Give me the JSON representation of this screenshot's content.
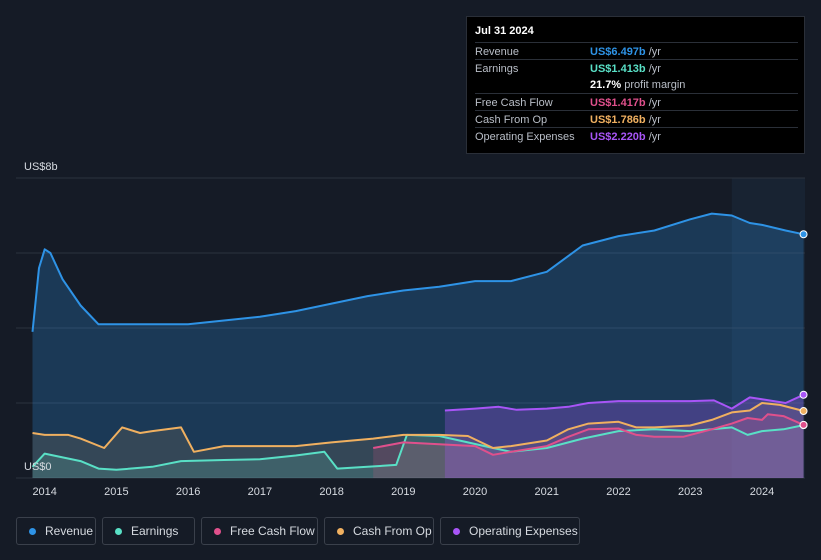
{
  "tooltip": {
    "date": "Jul 31 2024",
    "rows": [
      {
        "label": "Revenue",
        "value": "US$6.497b",
        "unit": "/yr",
        "color": "#2e93e6"
      },
      {
        "label": "Earnings",
        "value": "US$1.413b",
        "unit": "/yr",
        "color": "#59e0c6"
      },
      {
        "label": "",
        "value": "21.7%",
        "unit": "profit margin",
        "color": "#ffffff"
      },
      {
        "label": "Free Cash Flow",
        "value": "US$1.417b",
        "unit": "/yr",
        "color": "#e0508c"
      },
      {
        "label": "Cash From Op",
        "value": "US$1.786b",
        "unit": "/yr",
        "color": "#f0b060"
      },
      {
        "label": "Operating Expenses",
        "value": "US$2.220b",
        "unit": "/yr",
        "color": "#a855f7"
      }
    ]
  },
  "legend": [
    {
      "label": "Revenue",
      "color": "#2e93e6"
    },
    {
      "label": "Earnings",
      "color": "#59e0c6"
    },
    {
      "label": "Free Cash Flow",
      "color": "#e0508c"
    },
    {
      "label": "Cash From Op",
      "color": "#f0b060"
    },
    {
      "label": "Operating Expenses",
      "color": "#a855f7"
    }
  ],
  "chart_data": {
    "type": "area",
    "title": "",
    "xlabel": "",
    "ylabel": "",
    "y_top_label": "US$8b",
    "y_bottom_label": "US$0",
    "ylim": [
      0,
      8
    ],
    "xlim": [
      2013.6,
      2024.6
    ],
    "x_tick_labels": [
      "2014",
      "2015",
      "2016",
      "2017",
      "2018",
      "2019",
      "2020",
      "2021",
      "2022",
      "2023",
      "2024"
    ],
    "x_ticks": [
      2014,
      2015,
      2016,
      2017,
      2018,
      2019,
      2020,
      2021,
      2022,
      2023,
      2024
    ],
    "highlight_from": 2023.58,
    "series": [
      {
        "name": "Revenue",
        "color": "#2e93e6",
        "x": [
          2013.83,
          2013.92,
          2014.0,
          2014.08,
          2014.25,
          2014.5,
          2014.75,
          2015.0,
          2015.5,
          2016.0,
          2016.5,
          2017.0,
          2017.5,
          2018.0,
          2018.5,
          2019.0,
          2019.5,
          2020.0,
          2020.5,
          2021.0,
          2021.5,
          2022.0,
          2022.5,
          2023.0,
          2023.3,
          2023.58,
          2023.83,
          2024.0,
          2024.33,
          2024.58
        ],
        "y": [
          3.9,
          5.6,
          6.1,
          6.0,
          5.3,
          4.6,
          4.1,
          4.1,
          4.1,
          4.1,
          4.2,
          4.3,
          4.45,
          4.65,
          4.85,
          5.0,
          5.1,
          5.25,
          5.25,
          5.5,
          6.2,
          6.45,
          6.6,
          6.9,
          7.05,
          7.0,
          6.8,
          6.75,
          6.6,
          6.5
        ]
      },
      {
        "name": "Earnings",
        "color": "#59e0c6",
        "x": [
          2013.83,
          2014.0,
          2014.25,
          2014.5,
          2014.75,
          2015.0,
          2015.5,
          2015.9,
          2016.5,
          2017.0,
          2017.5,
          2017.9,
          2018.08,
          2018.5,
          2018.9,
          2019.05,
          2019.5,
          2019.9,
          2020.25,
          2020.5,
          2021.0,
          2021.5,
          2022.0,
          2022.5,
          2023.0,
          2023.3,
          2023.58,
          2023.8,
          2024.0,
          2024.3,
          2024.58
        ],
        "y": [
          0.3,
          0.65,
          0.55,
          0.45,
          0.25,
          0.22,
          0.3,
          0.45,
          0.48,
          0.5,
          0.6,
          0.7,
          0.25,
          0.3,
          0.35,
          1.15,
          1.12,
          0.95,
          0.8,
          0.7,
          0.8,
          1.05,
          1.25,
          1.3,
          1.25,
          1.3,
          1.35,
          1.15,
          1.25,
          1.3,
          1.41
        ]
      },
      {
        "name": "Free Cash Flow",
        "color": "#e0508c",
        "x": [
          2018.58,
          2019.0,
          2019.5,
          2020.0,
          2020.25,
          2020.5,
          2021.0,
          2021.3,
          2021.58,
          2022.0,
          2022.25,
          2022.5,
          2022.9,
          2023.3,
          2023.58,
          2023.8,
          2024.0,
          2024.08,
          2024.3,
          2024.58
        ],
        "y": [
          0.8,
          0.95,
          0.9,
          0.85,
          0.62,
          0.7,
          0.85,
          1.1,
          1.3,
          1.32,
          1.15,
          1.1,
          1.1,
          1.3,
          1.45,
          1.6,
          1.55,
          1.7,
          1.65,
          1.417
        ]
      },
      {
        "name": "Cash From Op",
        "color": "#f0b060",
        "x": [
          2013.83,
          2014.0,
          2014.33,
          2014.5,
          2014.83,
          2015.08,
          2015.33,
          2015.5,
          2015.9,
          2016.08,
          2016.5,
          2017.0,
          2017.5,
          2018.0,
          2018.58,
          2019.0,
          2019.5,
          2019.9,
          2020.25,
          2020.5,
          2021.0,
          2021.3,
          2021.58,
          2022.0,
          2022.25,
          2022.5,
          2023.0,
          2023.3,
          2023.58,
          2023.83,
          2024.0,
          2024.25,
          2024.58
        ],
        "y": [
          1.2,
          1.15,
          1.15,
          1.05,
          0.8,
          1.35,
          1.2,
          1.25,
          1.35,
          0.7,
          0.85,
          0.85,
          0.85,
          0.95,
          1.05,
          1.15,
          1.15,
          1.12,
          0.8,
          0.85,
          1.0,
          1.3,
          1.45,
          1.5,
          1.35,
          1.35,
          1.4,
          1.55,
          1.75,
          1.8,
          2.0,
          1.95,
          1.786
        ]
      },
      {
        "name": "Operating Expenses",
        "color": "#a855f7",
        "x": [
          2019.58,
          2020.0,
          2020.33,
          2020.58,
          2021.0,
          2021.3,
          2021.58,
          2022.0,
          2022.5,
          2023.0,
          2023.33,
          2023.58,
          2023.83,
          2024.0,
          2024.33,
          2024.58
        ],
        "y": [
          1.8,
          1.85,
          1.9,
          1.82,
          1.85,
          1.9,
          2.0,
          2.05,
          2.05,
          2.05,
          2.07,
          1.85,
          2.15,
          2.1,
          2.0,
          2.22
        ]
      }
    ]
  }
}
